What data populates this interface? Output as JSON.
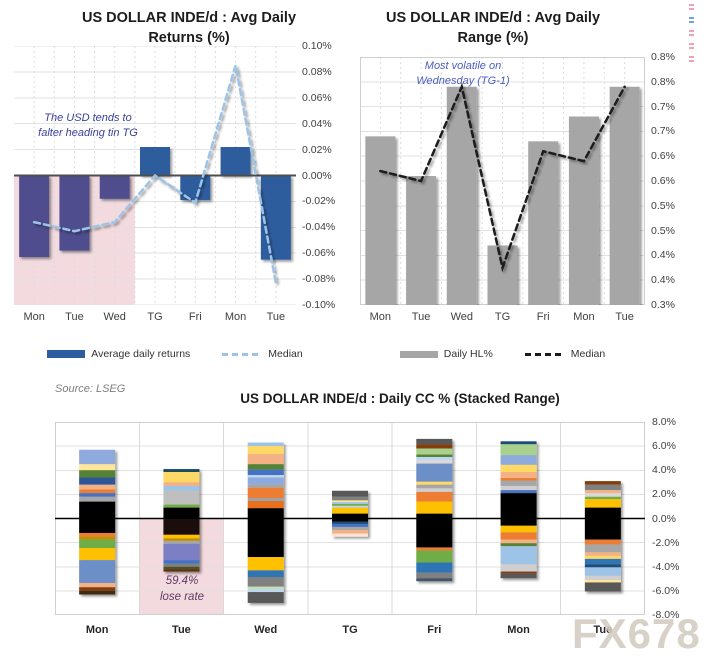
{
  "source_note": "Source: LSEG",
  "watermark": "FX678",
  "corner_marks": [
    "#f2a0b4",
    "#6fa3dc",
    "#f2a0b4",
    "#f2a0b4",
    "#f2a0b4"
  ],
  "chart_data": [
    {
      "type": "bar",
      "title_lines": [
        "US DOLLAR INDE/d : Avg Daily",
        "Returns (%)"
      ],
      "categories": [
        "Mon",
        "Tue",
        "Wed",
        "TG",
        "Fri",
        "Mon",
        "Tue"
      ],
      "ylim": [
        -0.1,
        0.1
      ],
      "ytick_labels": [
        "0.10%",
        "0.08%",
        "0.06%",
        "0.04%",
        "0.02%",
        "0.00%",
        "-0.02%",
        "-0.04%",
        "-0.06%",
        "-0.08%",
        "-0.10%"
      ],
      "annotation": [
        "The USD tends to",
        "falter heading tin TG"
      ],
      "highlight": {
        "from_category": 0,
        "to_category": 2,
        "color": "#f3dade",
        "region": "below-zero"
      },
      "series": [
        {
          "name": "Average daily returns",
          "type": "bar",
          "values": [
            -0.063,
            -0.058,
            -0.018,
            0.022,
            -0.019,
            0.022,
            -0.065
          ],
          "colors": [
            "#504e8e",
            "#504e8e",
            "#504e8e",
            "#2d5d9e",
            "#2d5d9e",
            "#2d5d9e",
            "#2d5d9e"
          ]
        },
        {
          "name": "Median",
          "type": "line",
          "dashed": true,
          "color": "#9dc3e6",
          "values": [
            -0.036,
            -0.043,
            -0.036,
            0.0,
            -0.021,
            0.085,
            -0.083
          ]
        }
      ]
    },
    {
      "type": "bar",
      "title_lines": [
        "US DOLLAR INDE/d : Avg Daily",
        "Range (%)"
      ],
      "categories": [
        "Mon",
        "Tue",
        "Wed",
        "TG",
        "Fri",
        "Mon",
        "Tue"
      ],
      "ylim": [
        0.3,
        0.8
      ],
      "ytick_labels": [
        "0.8%",
        "0.8%",
        "0.7%",
        "0.7%",
        "0.6%",
        "0.6%",
        "0.5%",
        "0.5%",
        "0.4%",
        "0.4%",
        "0.3%"
      ],
      "annotation": [
        "Most volatile on",
        "Wednesday (TG-1)"
      ],
      "series": [
        {
          "name": "Daily HL%",
          "type": "bar",
          "values": [
            0.64,
            0.56,
            0.74,
            0.42,
            0.63,
            0.68,
            0.74
          ],
          "color": "#a6a6a6"
        },
        {
          "name": "Median",
          "type": "line",
          "dashed": true,
          "color": "#1a1a1a",
          "values": [
            0.57,
            0.55,
            0.74,
            0.375,
            0.61,
            0.59,
            0.74
          ]
        }
      ]
    },
    {
      "type": "stacked-bar",
      "title": "US DOLLAR INDE/d : Daily CC % (Stacked Range)",
      "categories": [
        "Mon",
        "Tue",
        "Wed",
        "TG",
        "Fri",
        "Mon",
        "Tue"
      ],
      "ylim": [
        -8,
        8
      ],
      "ytick_labels": [
        "8.0%",
        "6.0%",
        "4.0%",
        "2.0%",
        "0.0%",
        "-2.0%",
        "-4.0%",
        "-6.0%",
        "-8.0%"
      ],
      "highlight": {
        "category": 1,
        "color": "#f3dade",
        "note_lines": [
          "59.4%",
          "lose rate"
        ],
        "region": "below-zero"
      },
      "bars": [
        {
          "top": 5.7,
          "segments": [
            [
              "#8faadc",
              1.2
            ],
            [
              "#ffe699",
              0.5
            ],
            [
              "#548235",
              0.6
            ],
            [
              "#2f5597",
              0.6
            ],
            [
              "#f4b183",
              0.4
            ],
            [
              "#ed7d31",
              0.3
            ],
            [
              "#4472c4",
              0.3
            ],
            [
              "#a6a6a6",
              0.4
            ],
            [
              "#000000",
              2.6
            ],
            [
              "#ed7d31",
              0.3
            ],
            [
              "#bf9000",
              0.25
            ],
            [
              "#70ad47",
              0.7
            ],
            [
              "#ffc000",
              1.0
            ],
            [
              "#6d8fc7",
              1.9
            ],
            [
              "#f4b183",
              0.35
            ],
            [
              "#843c0c",
              0.3
            ],
            [
              "#3f2a14",
              0.3
            ]
          ]
        },
        {
          "top": 4.1,
          "segments": [
            [
              "#1f4e5f",
              0.25
            ],
            [
              "#ffd966",
              0.85
            ],
            [
              "#f4b183",
              0.3
            ],
            [
              "#9dc3e6",
              0.4
            ],
            [
              "#bfbfbf",
              1.15
            ],
            [
              "#70ad47",
              0.25
            ],
            [
              "#000000",
              1.0
            ],
            [
              "#1c0b08",
              1.25
            ],
            [
              "#ffc000",
              0.3
            ],
            [
              "#bf9000",
              0.2
            ],
            [
              "#a6a6a6",
              0.25
            ],
            [
              "#7b7fc4",
              1.35
            ],
            [
              "#4472c4",
              0.3
            ],
            [
              "#808080",
              0.25
            ],
            [
              "#4b5320",
              0.2
            ],
            [
              "#5c3317",
              0.2
            ]
          ]
        },
        {
          "top": 6.3,
          "segments": [
            [
              "#9dc3e6",
              0.3
            ],
            [
              "#ffd966",
              0.65
            ],
            [
              "#f4b183",
              0.85
            ],
            [
              "#548235",
              0.45
            ],
            [
              "#4472c4",
              0.45
            ],
            [
              "#bdd7ee",
              0.2
            ],
            [
              "#8faadc",
              0.6
            ],
            [
              "#a6a6a6",
              0.25
            ],
            [
              "#ed7d31",
              0.85
            ],
            [
              "#9ba2ab",
              0.25
            ],
            [
              "#e8701a",
              0.6
            ],
            [
              "#000000",
              4.05
            ],
            [
              "#ffc000",
              1.1
            ],
            [
              "#2e75b6",
              0.55
            ],
            [
              "#808080",
              0.8
            ],
            [
              "#c5e0b4",
              0.2
            ],
            [
              "#bdd7ee",
              0.25
            ],
            [
              "#595959",
              0.9
            ]
          ]
        },
        {
          "top": 2.3,
          "segments": [
            [
              "#595959",
              0.5
            ],
            [
              "#808080",
              0.3
            ],
            [
              "#ffe699",
              0.15
            ],
            [
              "#9dc3e6",
              0.15
            ],
            [
              "#70ad47",
              0.15
            ],
            [
              "#bdd7ee",
              0.15
            ],
            [
              "#ffc000",
              0.5
            ],
            [
              "#000000",
              0.65
            ],
            [
              "#1f4e79",
              0.2
            ],
            [
              "#4472c4",
              0.25
            ],
            [
              "#a6a6a6",
              0.25
            ],
            [
              "#f4b183",
              0.3
            ],
            [
              "#fbe5d6",
              0.25
            ]
          ]
        },
        {
          "top": 6.6,
          "segments": [
            [
              "#595959",
              0.45
            ],
            [
              "#843c0c",
              0.35
            ],
            [
              "#a9d18e",
              0.5
            ],
            [
              "#548235",
              0.2
            ],
            [
              "#bdd7ee",
              0.25
            ],
            [
              "#d9d9d9",
              0.3
            ],
            [
              "#6d8fc7",
              1.5
            ],
            [
              "#ffd966",
              0.25
            ],
            [
              "#a6a6a6",
              0.3
            ],
            [
              "#d0cece",
              0.3
            ],
            [
              "#ed7d31",
              0.8
            ],
            [
              "#ffc000",
              1.0
            ],
            [
              "#000000",
              2.8
            ],
            [
              "#ed7d31",
              0.25
            ],
            [
              "#70ad47",
              1.0
            ],
            [
              "#2e75b6",
              0.85
            ],
            [
              "#808080",
              0.45
            ],
            [
              "#44546a",
              0.25
            ]
          ]
        },
        {
          "top": 6.4,
          "segments": [
            [
              "#1f4e79",
              0.25
            ],
            [
              "#a9d18e",
              0.9
            ],
            [
              "#8faadc",
              0.8
            ],
            [
              "#ffd966",
              0.6
            ],
            [
              "#f4b183",
              0.5
            ],
            [
              "#ed7d31",
              0.2
            ],
            [
              "#a6a6a6",
              0.45
            ],
            [
              "#d0cece",
              0.35
            ],
            [
              "#4472c4",
              0.25
            ],
            [
              "#000000",
              2.7
            ],
            [
              "#ffc000",
              0.55
            ],
            [
              "#ed7d31",
              0.6
            ],
            [
              "#f4b183",
              0.3
            ],
            [
              "#548235",
              0.25
            ],
            [
              "#9dc3e6",
              1.5
            ],
            [
              "#d0cece",
              0.6
            ],
            [
              "#843c0c",
              0.15
            ],
            [
              "#595959",
              0.4
            ]
          ]
        },
        {
          "top": 3.1,
          "segments": [
            [
              "#843c0c",
              0.3
            ],
            [
              "#808080",
              0.45
            ],
            [
              "#f4b183",
              0.25
            ],
            [
              "#d9d9d9",
              0.3
            ],
            [
              "#70ad47",
              0.2
            ],
            [
              "#ffc000",
              0.7
            ],
            [
              "#000000",
              2.65
            ],
            [
              "#ed7d31",
              0.4
            ],
            [
              "#a6a6a6",
              0.65
            ],
            [
              "#f4b183",
              0.3
            ],
            [
              "#ffd966",
              0.25
            ],
            [
              "#2e75b6",
              0.45
            ],
            [
              "#1f4e79",
              0.25
            ],
            [
              "#9dc3e6",
              0.7
            ],
            [
              "#d0cece",
              0.35
            ],
            [
              "#ffe699",
              0.2
            ],
            [
              "#595959",
              0.75
            ]
          ]
        }
      ]
    }
  ]
}
